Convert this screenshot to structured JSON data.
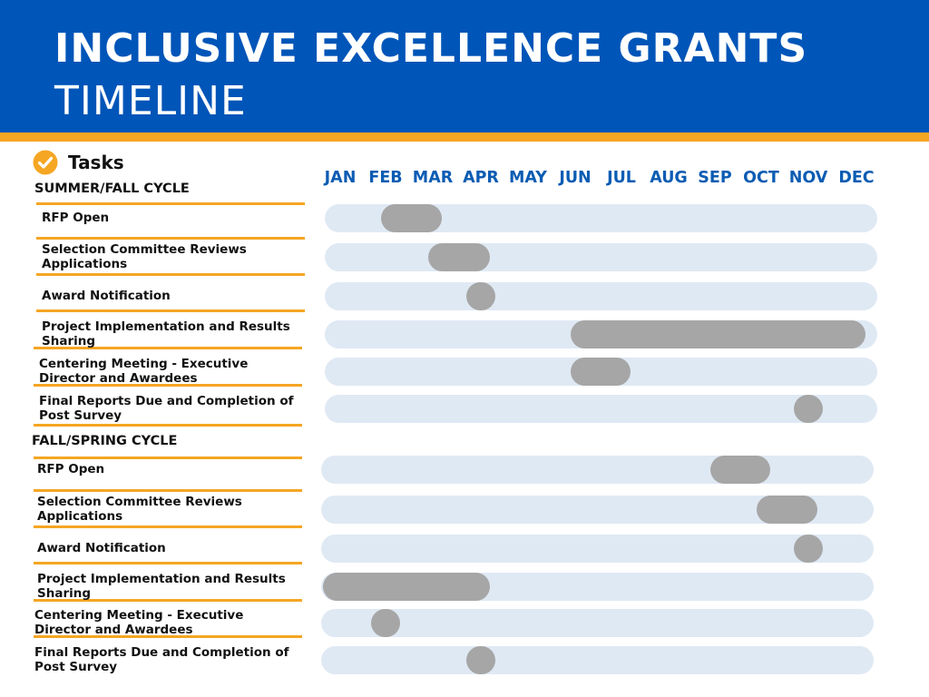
{
  "header": {
    "title": "INCLUSIVE EXCELLENCE GRANTS",
    "subtitle": "TIMELINE",
    "colors": {
      "header_bg": "#0055b8",
      "stripe": "#f5a623",
      "month_text": "#0b5cb3",
      "track": "#dfe9f4",
      "bar": "#a6a6a6"
    }
  },
  "tasks_heading": {
    "label": "Tasks",
    "icon": "check-circle-icon"
  },
  "chart_data": {
    "type": "gantt",
    "months": [
      "JAN",
      "FEB",
      "MAR",
      "APR",
      "MAY",
      "JUN",
      "JUL",
      "AUG",
      "SEP",
      "OCT",
      "NOV",
      "DEC"
    ],
    "sections": [
      {
        "name": "SUMMER/FALL CYCLE",
        "tasks": [
          {
            "label": "RFP Open",
            "start": "FEB",
            "end": "MAR"
          },
          {
            "label": "Selection Committee Reviews Applications",
            "start": "MAR",
            "end": "APR"
          },
          {
            "label": "Award Notification",
            "start": "APR",
            "end": "APR"
          },
          {
            "label": "Project Implementation and Results Sharing",
            "start": "JUN",
            "end": "DEC"
          },
          {
            "label": "Centering Meeting - Executive Director and Awardees",
            "start": "JUN",
            "end": "JUL"
          },
          {
            "label": "Final Reports Due  and Completion of Post Survey",
            "start": "NOV",
            "end": "NOV"
          }
        ]
      },
      {
        "name": "FALL/SPRING CYCLE",
        "tasks": [
          {
            "label": "RFP Open",
            "start": "SEP",
            "end": "OCT"
          },
          {
            "label": "Selection Committee Reviews Applications",
            "start": "OCT",
            "end": "NOV"
          },
          {
            "label": "Award Notification",
            "start": "NOV",
            "end": "NOV"
          },
          {
            "label": "Project Implementation and Results Sharing",
            "start": "JAN",
            "end": "APR"
          },
          {
            "label": "Centering Meeting - Executive Director and Awardees",
            "start": "FEB",
            "end": "FEB"
          },
          {
            "label": "Final Reports Due  and Completion of Post Survey",
            "start": "APR",
            "end": "APR"
          }
        ]
      }
    ]
  }
}
